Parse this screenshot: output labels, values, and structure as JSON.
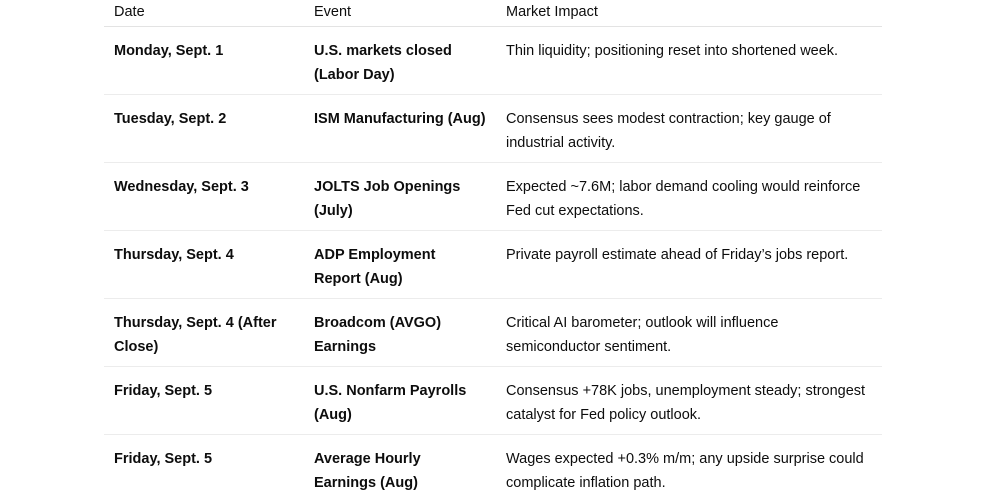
{
  "table": {
    "headers": {
      "date": "Date",
      "event": "Event",
      "impact": "Market Impact"
    },
    "rows": [
      {
        "date": "Monday, Sept. 1",
        "event": "U.S. markets closed (Labor Day)",
        "impact": "Thin liquidity; positioning reset into shortened week."
      },
      {
        "date": "Tuesday, Sept. 2",
        "event": "ISM Manufacturing (Aug)",
        "impact": "Consensus sees modest contraction; key gauge of industrial activity."
      },
      {
        "date": "Wednesday, Sept. 3",
        "event": "JOLTS Job Openings (July)",
        "impact": "Expected ~7.6M; labor demand cooling would reinforce Fed cut expectations."
      },
      {
        "date": "Thursday, Sept. 4",
        "event": "ADP Employment Report (Aug)",
        "impact": "Private payroll estimate ahead of Friday’s jobs report."
      },
      {
        "date": "Thursday, Sept. 4 (After Close)",
        "event": "Broadcom (AVGO) Earnings",
        "impact": "Critical AI barometer; outlook will influence semiconductor sentiment."
      },
      {
        "date": "Friday, Sept. 5",
        "event": "U.S. Nonfarm Payrolls (Aug)",
        "impact": "Consensus +78K jobs, unemployment steady; strongest catalyst for Fed policy outlook."
      },
      {
        "date": "Friday, Sept. 5",
        "event": "Average Hourly Earnings (Aug)",
        "impact": "Wages expected +0.3% m/m; any upside surprise could complicate inflation path."
      }
    ]
  }
}
